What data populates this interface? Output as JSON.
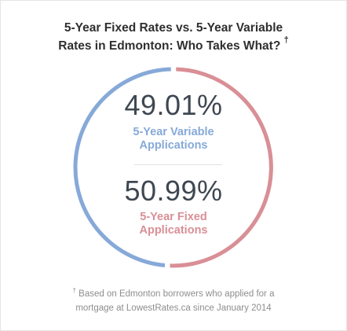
{
  "title": {
    "line1": "5-Year Fixed Rates vs. 5-Year Variable",
    "line2": "Rates in Edmonton: Who Takes What?",
    "mark": "†"
  },
  "colors": {
    "variable": "#86a9d8",
    "fixed": "#d98f96"
  },
  "chart_data": {
    "type": "pie",
    "title": "5-Year Fixed Rates vs. 5-Year Variable Rates in Edmonton: Who Takes What?",
    "categories": [
      "5-Year Variable Applications",
      "5-Year Fixed Applications"
    ],
    "values": [
      49.01,
      50.99
    ],
    "unit": "%"
  },
  "variable": {
    "percent": "49.01%",
    "label_line1": "5-Year Variable",
    "label_line2": "Applications"
  },
  "fixed": {
    "percent": "50.99%",
    "label_line1": "5-Year Fixed",
    "label_line2": "Applications"
  },
  "footnote": {
    "mark": "†",
    "line1": " Based on Edmonton borrowers who applied for a",
    "line2": "mortgage at LowestRates.ca since January 2014"
  }
}
